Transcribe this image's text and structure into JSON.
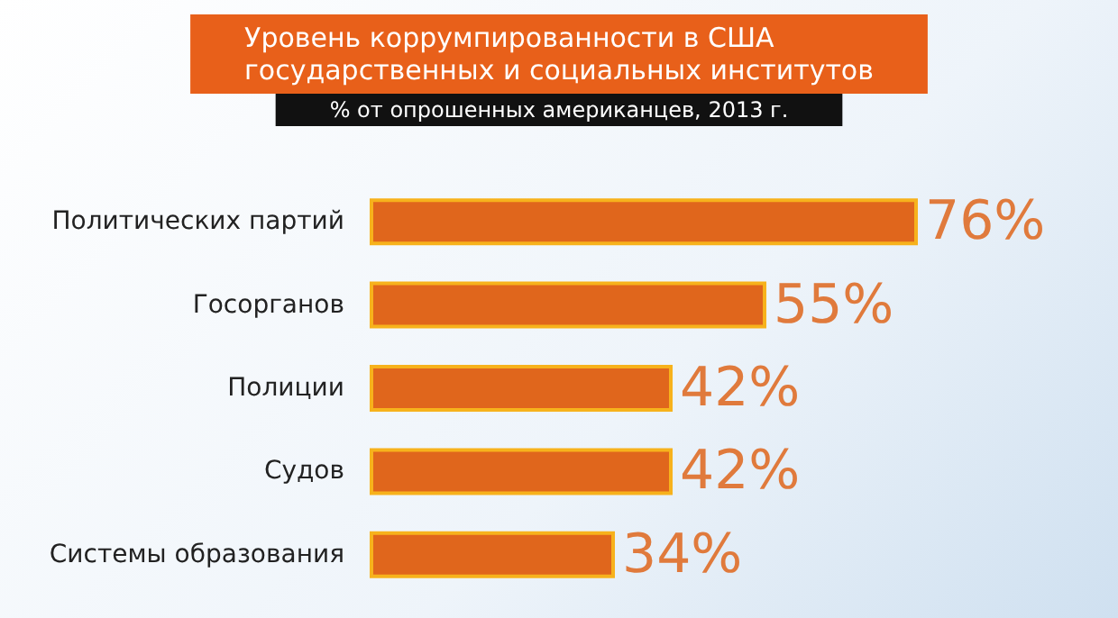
{
  "chart_data": {
    "type": "bar",
    "orientation": "horizontal",
    "title": "Уровень коррумпированности в США\nгосударственных и социальных институтов",
    "subtitle": "% от опрошенных американцев, 2013 г.",
    "categories": [
      "Политических партий",
      "Госорганов",
      "Полиции",
      "Судов",
      "Системы образования"
    ],
    "values": [
      76,
      55,
      42,
      42,
      34
    ],
    "color": "#e0661c",
    "value_labels": [
      "76%",
      "55%",
      "42%",
      "42%",
      "34%"
    ]
  }
}
